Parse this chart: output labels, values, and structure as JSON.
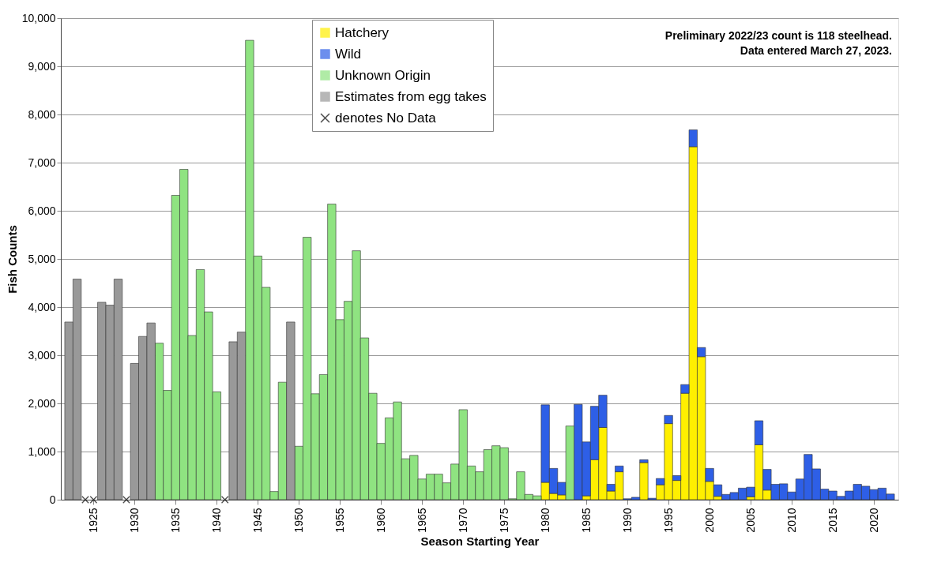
{
  "chart_data": {
    "type": "bar",
    "stacked": true,
    "xlabel": "Season Starting Year",
    "ylabel": "Fish Counts",
    "x": [
      1922,
      1923,
      1924,
      1925,
      1926,
      1927,
      1928,
      1929,
      1930,
      1931,
      1932,
      1933,
      1934,
      1935,
      1936,
      1937,
      1938,
      1939,
      1940,
      1941,
      1942,
      1943,
      1944,
      1945,
      1946,
      1947,
      1948,
      1949,
      1950,
      1951,
      1952,
      1953,
      1954,
      1955,
      1956,
      1957,
      1958,
      1959,
      1960,
      1961,
      1962,
      1963,
      1964,
      1965,
      1966,
      1967,
      1968,
      1969,
      1970,
      1971,
      1972,
      1973,
      1974,
      1975,
      1976,
      1977,
      1978,
      1979,
      1980,
      1981,
      1982,
      1983,
      1984,
      1985,
      1986,
      1987,
      1988,
      1989,
      1990,
      1991,
      1992,
      1993,
      1994,
      1995,
      1996,
      1997,
      1998,
      1999,
      2000,
      2001,
      2002,
      2003,
      2004,
      2005,
      2006,
      2007,
      2008,
      2009,
      2010,
      2011,
      2012,
      2013,
      2014,
      2015,
      2016,
      2017,
      2018,
      2019,
      2020,
      2021,
      2022
    ],
    "xlim": [
      1921.5,
      2022.5
    ],
    "xticks": [
      1925,
      1930,
      1935,
      1940,
      1945,
      1950,
      1955,
      1960,
      1965,
      1970,
      1975,
      1980,
      1985,
      1990,
      1995,
      2000,
      2005,
      2010,
      2015,
      2020
    ],
    "ylim": [
      0,
      10000
    ],
    "yticks": [
      0,
      {
        "value": 1000,
        "label": "1,000"
      },
      {
        "value": 2000,
        "label": "2,000"
      },
      {
        "value": 3000,
        "label": "3,000"
      },
      {
        "value": 4000,
        "label": "4,000"
      },
      {
        "value": 5000,
        "label": "5,000"
      },
      {
        "value": 6000,
        "label": "6,000"
      },
      {
        "value": 7000,
        "label": "7,000"
      },
      {
        "value": 8000,
        "label": "8,000"
      },
      {
        "value": 9000,
        "label": "9,000"
      },
      {
        "value": 10000,
        "label": "10,000"
      }
    ],
    "grid": "y",
    "legend": "top",
    "annotations": [
      "Preliminary 2022/23 count is 118 steelhead.",
      "Data entered March 27, 2023."
    ],
    "series": [
      {
        "name": "Hatchery",
        "color": "#ffef00",
        "values": [
          null,
          null,
          null,
          null,
          null,
          null,
          null,
          null,
          null,
          null,
          null,
          null,
          null,
          null,
          null,
          null,
          null,
          null,
          null,
          null,
          null,
          null,
          null,
          null,
          null,
          null,
          null,
          null,
          null,
          null,
          null,
          null,
          null,
          null,
          null,
          null,
          null,
          null,
          null,
          null,
          null,
          null,
          null,
          null,
          null,
          null,
          null,
          null,
          null,
          null,
          null,
          null,
          null,
          null,
          null,
          null,
          null,
          null,
          360,
          130,
          100,
          null,
          null,
          80,
          830,
          1500,
          180,
          580,
          null,
          null,
          770,
          null,
          310,
          1580,
          400,
          2210,
          7330,
          2970,
          380,
          70,
          null,
          null,
          null,
          60,
          1140,
          200,
          null,
          null,
          null,
          null,
          null,
          null,
          null,
          null,
          null,
          null,
          null,
          null,
          null,
          null,
          null
        ]
      },
      {
        "name": "Wild",
        "color": "#2e5fe6",
        "values": [
          null,
          null,
          null,
          null,
          null,
          null,
          null,
          null,
          null,
          null,
          null,
          null,
          null,
          null,
          null,
          null,
          null,
          null,
          null,
          null,
          null,
          null,
          null,
          null,
          null,
          null,
          null,
          null,
          null,
          null,
          null,
          null,
          null,
          null,
          null,
          null,
          null,
          null,
          null,
          null,
          null,
          null,
          null,
          null,
          null,
          null,
          null,
          null,
          null,
          null,
          null,
          null,
          null,
          null,
          null,
          null,
          null,
          null,
          1610,
          520,
          260,
          null,
          1980,
          1120,
          1110,
          670,
          140,
          120,
          20,
          50,
          60,
          30,
          130,
          170,
          100,
          180,
          350,
          190,
          270,
          240,
          110,
          150,
          240,
          200,
          500,
          430,
          320,
          330,
          160,
          430,
          940,
          640,
          220,
          180,
          70,
          180,
          320,
          280,
          210,
          240,
          118
        ]
      },
      {
        "name": "Unknown Origin",
        "color": "#8fe381",
        "values": [
          null,
          null,
          null,
          null,
          null,
          null,
          null,
          null,
          null,
          null,
          null,
          3250,
          2270,
          6320,
          6860,
          3410,
          4780,
          3900,
          2240,
          null,
          null,
          null,
          9540,
          5060,
          4410,
          170,
          2440,
          null,
          1110,
          5450,
          2200,
          2600,
          6140,
          3740,
          4120,
          5170,
          3360,
          2210,
          1170,
          1700,
          2030,
          850,
          920,
          430,
          530,
          530,
          350,
          740,
          1870,
          700,
          580,
          1040,
          1120,
          1080,
          20,
          580,
          110,
          80,
          null,
          null,
          null,
          1530,
          null,
          null,
          null,
          null,
          null,
          null,
          null,
          null,
          null,
          null,
          null,
          null,
          null,
          null,
          null,
          null,
          null,
          null,
          null,
          null,
          null,
          null,
          null,
          null,
          null,
          null,
          null,
          null,
          null,
          null,
          null,
          null,
          null,
          null,
          null,
          null,
          null,
          null,
          null
        ]
      },
      {
        "name": "Estimates from egg takes",
        "color": "#999999",
        "values": [
          3690,
          4580,
          null,
          null,
          4100,
          4040,
          4580,
          null,
          2830,
          3390,
          3670,
          null,
          null,
          null,
          null,
          null,
          null,
          null,
          null,
          null,
          3280,
          3480,
          null,
          null,
          null,
          null,
          null,
          3690,
          null,
          null,
          null,
          null,
          null,
          null,
          null,
          null,
          null,
          null,
          null,
          null,
          null,
          null,
          null,
          null,
          null,
          null,
          null,
          null,
          null,
          null,
          null,
          null,
          null,
          null,
          null,
          null,
          null,
          null,
          null,
          null,
          null,
          null,
          null,
          null,
          null,
          null,
          null,
          null,
          null,
          null,
          null,
          null,
          null,
          null,
          null,
          null,
          null,
          null,
          null,
          null,
          null,
          null,
          null,
          null,
          null,
          null,
          null,
          null,
          null,
          null,
          null,
          null,
          null,
          null,
          null,
          null,
          null,
          null,
          null,
          null,
          null
        ]
      },
      {
        "name": "denotes No Data",
        "type": "scatter",
        "marker": "cross",
        "color": "#000000",
        "x": [
          1924,
          1925,
          1929,
          1941
        ],
        "values": [
          0,
          0,
          0,
          0
        ]
      }
    ]
  }
}
